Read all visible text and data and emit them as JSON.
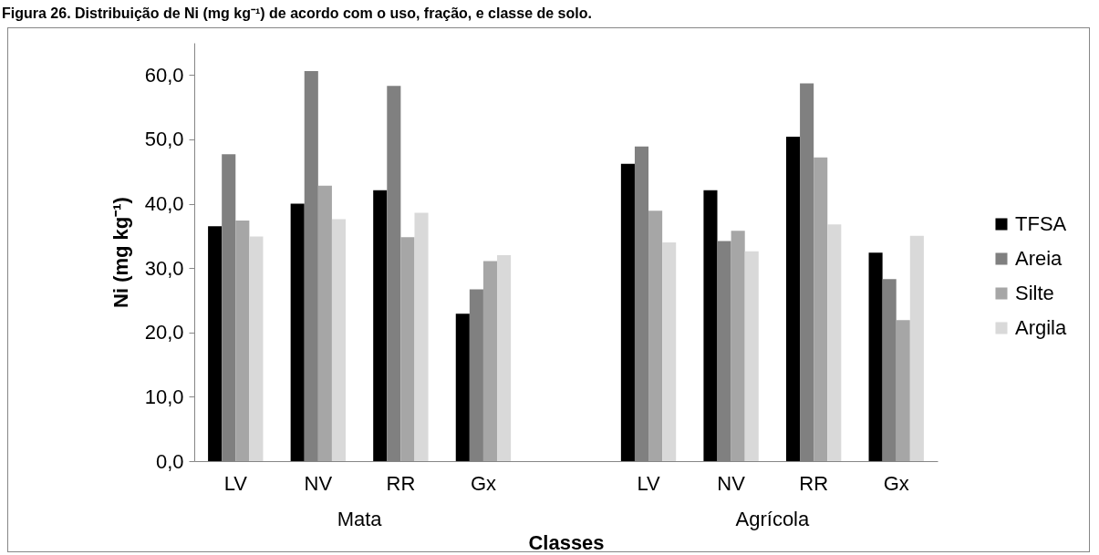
{
  "chart_data": {
    "type": "bar",
    "title": "Figura 26. Distribuição de Ni (mg kg⁻¹) de acordo com o uso, fração, e classe de solo.",
    "xlabel": "Classes",
    "ylabel": "Ni (mg kg⁻¹)",
    "categories": [
      "LV",
      "NV",
      "RR",
      "Gx",
      null,
      "LV",
      "NV",
      "RR",
      "Gx"
    ],
    "series": [
      {
        "name": "TFSA",
        "color": "#000000",
        "values": [
          36.5,
          40.0,
          42.1,
          22.9,
          null,
          46.2,
          42.1,
          50.4,
          32.4
        ]
      },
      {
        "name": "Areia",
        "color": "#808080",
        "values": [
          47.7,
          60.6,
          58.3,
          26.7,
          null,
          48.9,
          34.2,
          58.7,
          28.3
        ]
      },
      {
        "name": "Silte",
        "color": "#a6a6a6",
        "values": [
          37.4,
          42.8,
          34.8,
          31.1,
          null,
          38.9,
          35.8,
          47.2,
          21.9
        ]
      },
      {
        "name": "Argila",
        "color": "#d9d9d9",
        "values": [
          34.9,
          37.6,
          38.6,
          32.0,
          null,
          34.0,
          32.6,
          36.8,
          35.0
        ]
      }
    ],
    "annotations": [
      "Mata",
      "Agrícola"
    ],
    "ylim": [
      0,
      65
    ],
    "yticks": [
      {
        "value": 0,
        "label": "0,0"
      },
      {
        "value": 10,
        "label": "10,0"
      },
      {
        "value": 20,
        "label": "20,0"
      },
      {
        "value": 30,
        "label": "30,0"
      },
      {
        "value": 40,
        "label": "40,0"
      },
      {
        "value": 50,
        "label": "50,0"
      },
      {
        "value": 60,
        "label": "60,0"
      }
    ],
    "grid": false,
    "legend": "right"
  }
}
